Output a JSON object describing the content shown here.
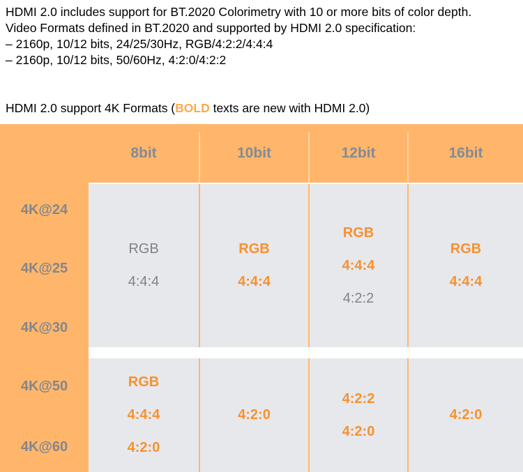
{
  "intro": {
    "lines": [
      "HDMI 2.0 includes support for BT.2020 Colorimetry with 10 or more bits of color depth.",
      "Video Formats defined in BT.2020 and supported by HDMI 2.0 specification:",
      "– 2160p, 10/12 bits, 24/25/30Hz, RGB/4:2:2/4:4:4",
      "– 2160p, 10/12 bits, 50/60Hz, 4:2:0/4:2:2"
    ]
  },
  "subtitle": {
    "prefix": "HDMI 2.0 support 4K Formats (",
    "bold_word": "BOLD",
    "suffix": " texts are new with HDMI 2.0)"
  },
  "colors": {
    "table_background": "#ffb66b",
    "cell_background": "#e6e8ec",
    "new_text": "#f7912f",
    "old_text": "#7e838a",
    "header_text": "#858a92"
  },
  "table": {
    "columns": [
      "8bit",
      "10bit",
      "12bit",
      "16bit"
    ],
    "row_labels": [
      "4K@24",
      "4K@25",
      "4K@30",
      "4K@50",
      "4K@60"
    ],
    "groups": [
      {
        "cells": [
          [
            {
              "text": "RGB",
              "new": false
            },
            {
              "text": "4:4:4",
              "new": false
            }
          ],
          [
            {
              "text": "RGB",
              "new": true
            },
            {
              "text": "4:4:4",
              "new": true
            }
          ],
          [
            {
              "text": "RGB",
              "new": true
            },
            {
              "text": "4:4:4",
              "new": true
            },
            {
              "text": "4:2:2",
              "new": false
            }
          ],
          [
            {
              "text": "RGB",
              "new": true
            },
            {
              "text": "4:4:4",
              "new": true
            }
          ]
        ]
      },
      {
        "cells": [
          [
            {
              "text": "RGB",
              "new": true
            },
            {
              "text": "4:4:4",
              "new": true
            },
            {
              "text": "4:2:0",
              "new": true
            }
          ],
          [
            {
              "text": "4:2:0",
              "new": true
            }
          ],
          [
            {
              "text": "4:2:2",
              "new": true
            },
            {
              "text": "4:2:0",
              "new": true
            }
          ],
          [
            {
              "text": "4:2:0",
              "new": true
            }
          ]
        ]
      }
    ]
  }
}
